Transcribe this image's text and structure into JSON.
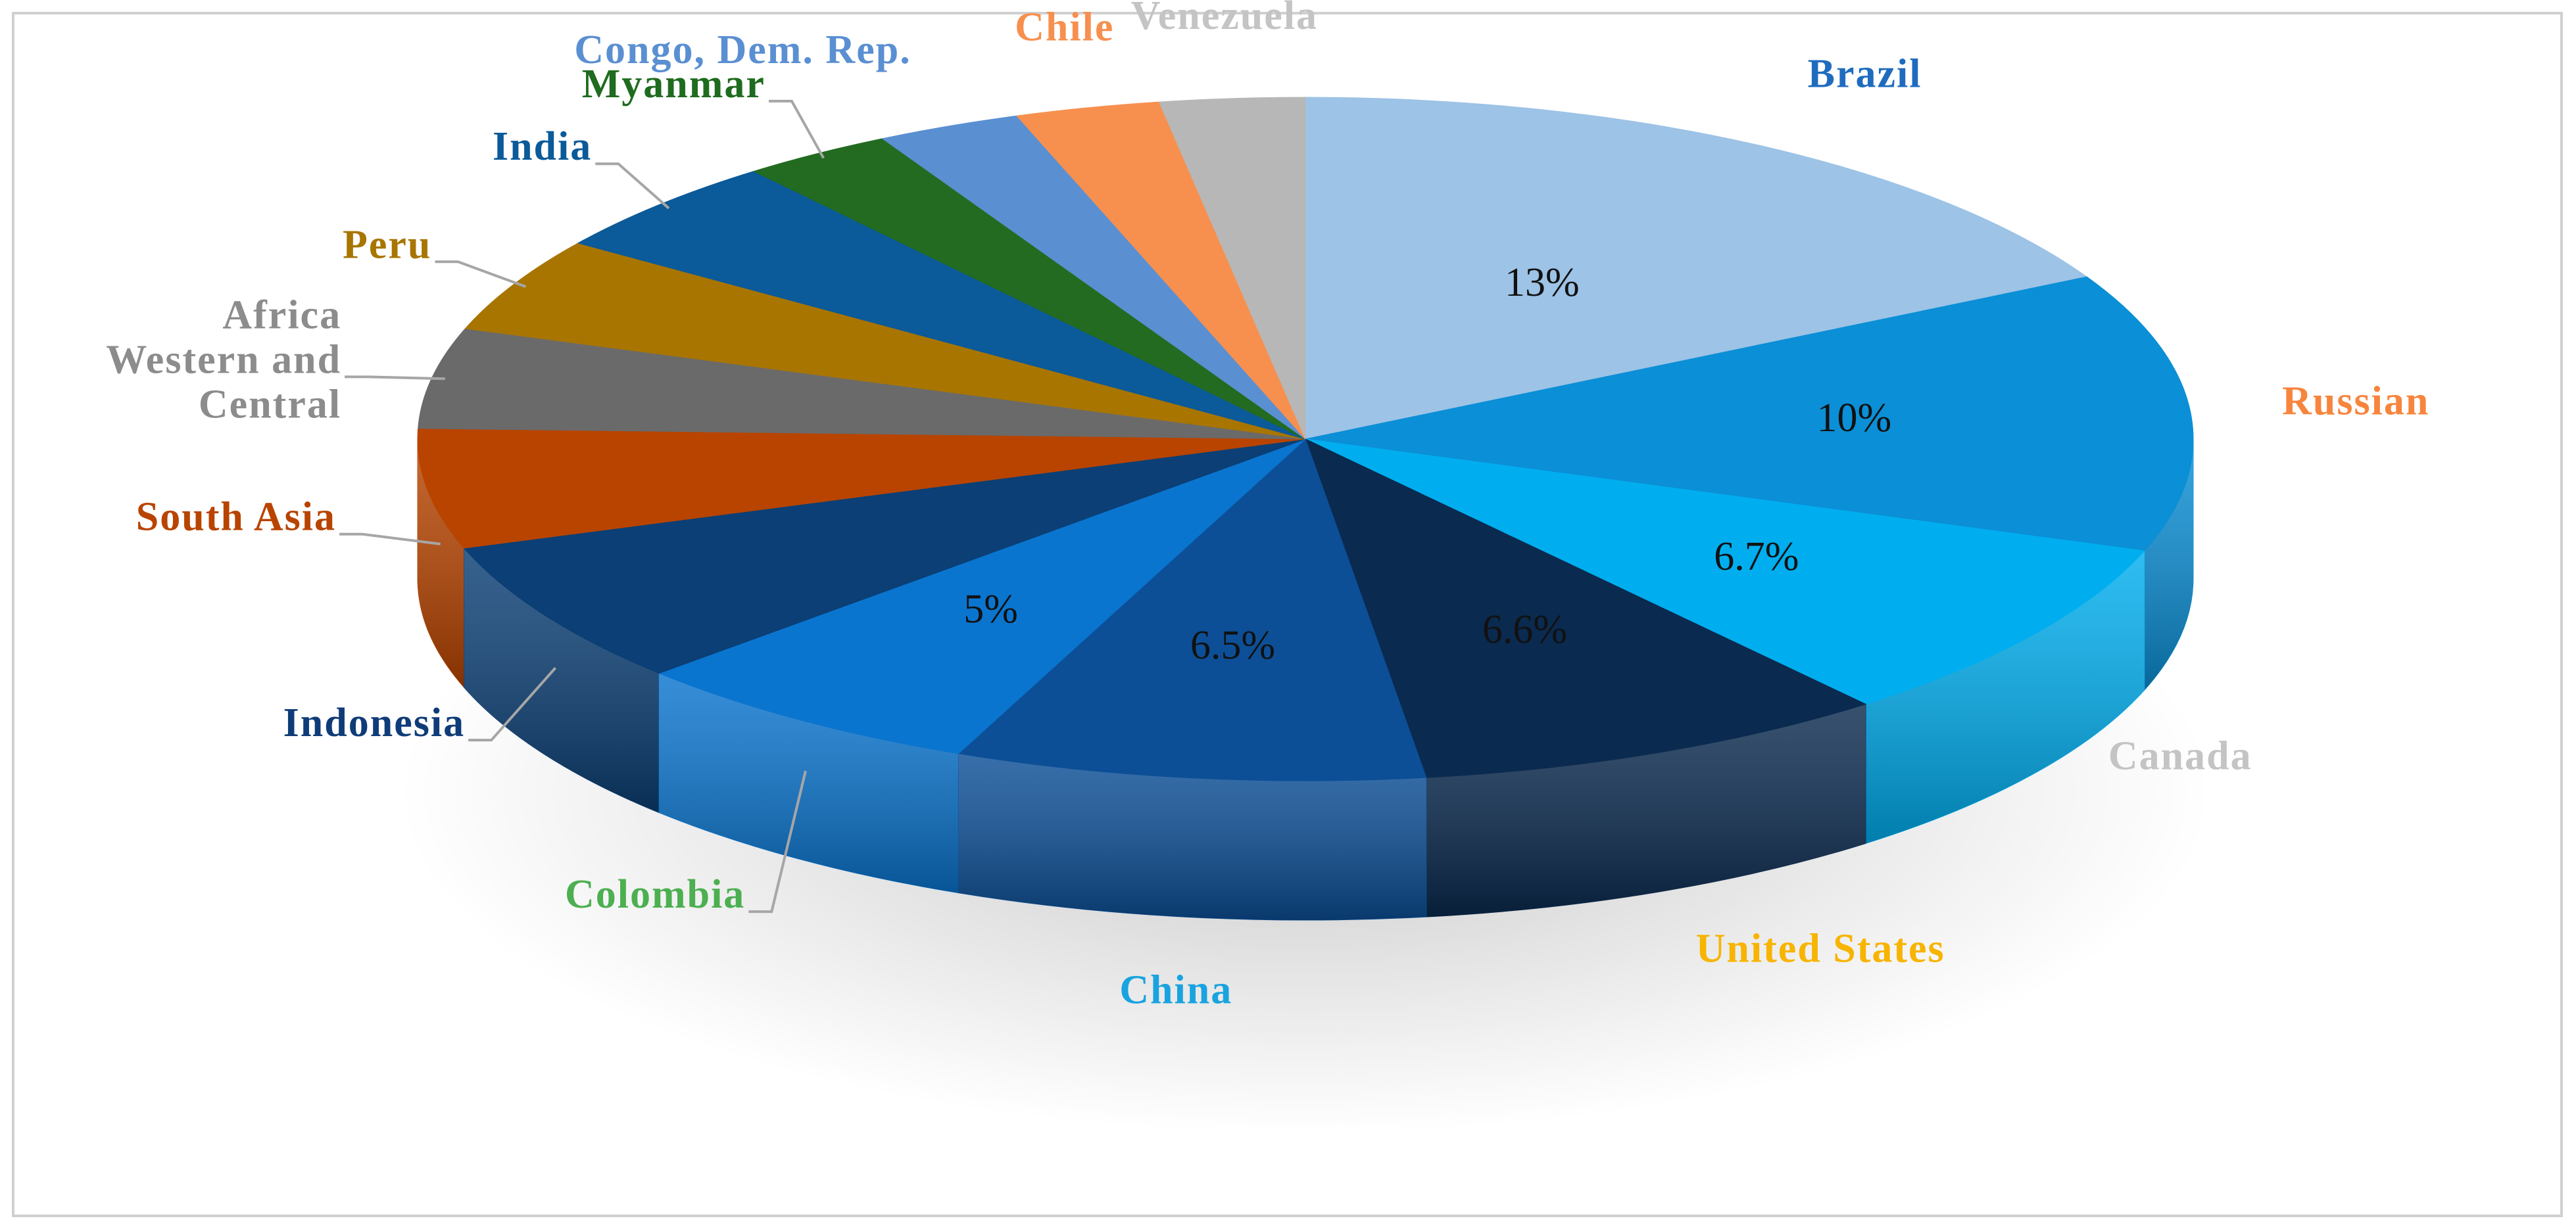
{
  "chart_data": {
    "type": "pie",
    "title": "",
    "slices": [
      {
        "label": "Brazil",
        "value": 13,
        "value_label": "13%",
        "color": "#9dc3e6",
        "label_color": "#1f6cbf"
      },
      {
        "label": "Russian",
        "value": 10,
        "value_label": "10%",
        "color": "#0b8fd6",
        "label_color": "#f7853d"
      },
      {
        "label": "Canada",
        "value": 6.7,
        "value_label": "6.7%",
        "color": "#00aeef",
        "label_color": "#c4c4c4"
      },
      {
        "label": "United States",
        "value": 6.6,
        "value_label": "6.6%",
        "color": "#0a2a4f",
        "label_color": "#f7b400"
      },
      {
        "label": "China",
        "value": 6.5,
        "value_label": "6.5%",
        "color": "#0c4f97",
        "label_color": "#19a3e0"
      },
      {
        "label": "Colombia",
        "value": 5,
        "value_label": "5%",
        "color": "#0a75cf",
        "label_color": "#4caf50"
      },
      {
        "label": "Indonesia",
        "value": 5.2,
        "value_label": "",
        "color": "#0b3f75",
        "label_color": "#0f3c78"
      },
      {
        "label": "South Asia",
        "value": 4.3,
        "value_label": "",
        "color": "#b84400",
        "label_color": "#b84400"
      },
      {
        "label": "Africa Western and Central",
        "value": 3.6,
        "value_label": "",
        "color": "#6a6a6a",
        "label_color": "#8c8c8c"
      },
      {
        "label": "Peru",
        "value": 3.4,
        "value_label": "",
        "color": "#a87500",
        "label_color": "#a87500"
      },
      {
        "label": "India",
        "value": 3.5,
        "value_label": "",
        "color": "#0b5a99",
        "label_color": "#0b5a99"
      },
      {
        "label": "Myanmar",
        "value": 2.1,
        "value_label": "",
        "color": "#236b20",
        "label_color": "#1f6b1f"
      },
      {
        "label": "Congo, Dem. Rep.",
        "value": 2.0,
        "value_label": "",
        "color": "#5a8fd2",
        "label_color": "#5a8fd2"
      },
      {
        "label": "Chile",
        "value": 2.0,
        "value_label": "",
        "color": "#f7904f",
        "label_color": "#f7904f"
      },
      {
        "label": "Venezuela",
        "value": 2.0,
        "value_label": "",
        "color": "#b7b7b7",
        "label_color": "#c4c4c4"
      }
    ]
  }
}
